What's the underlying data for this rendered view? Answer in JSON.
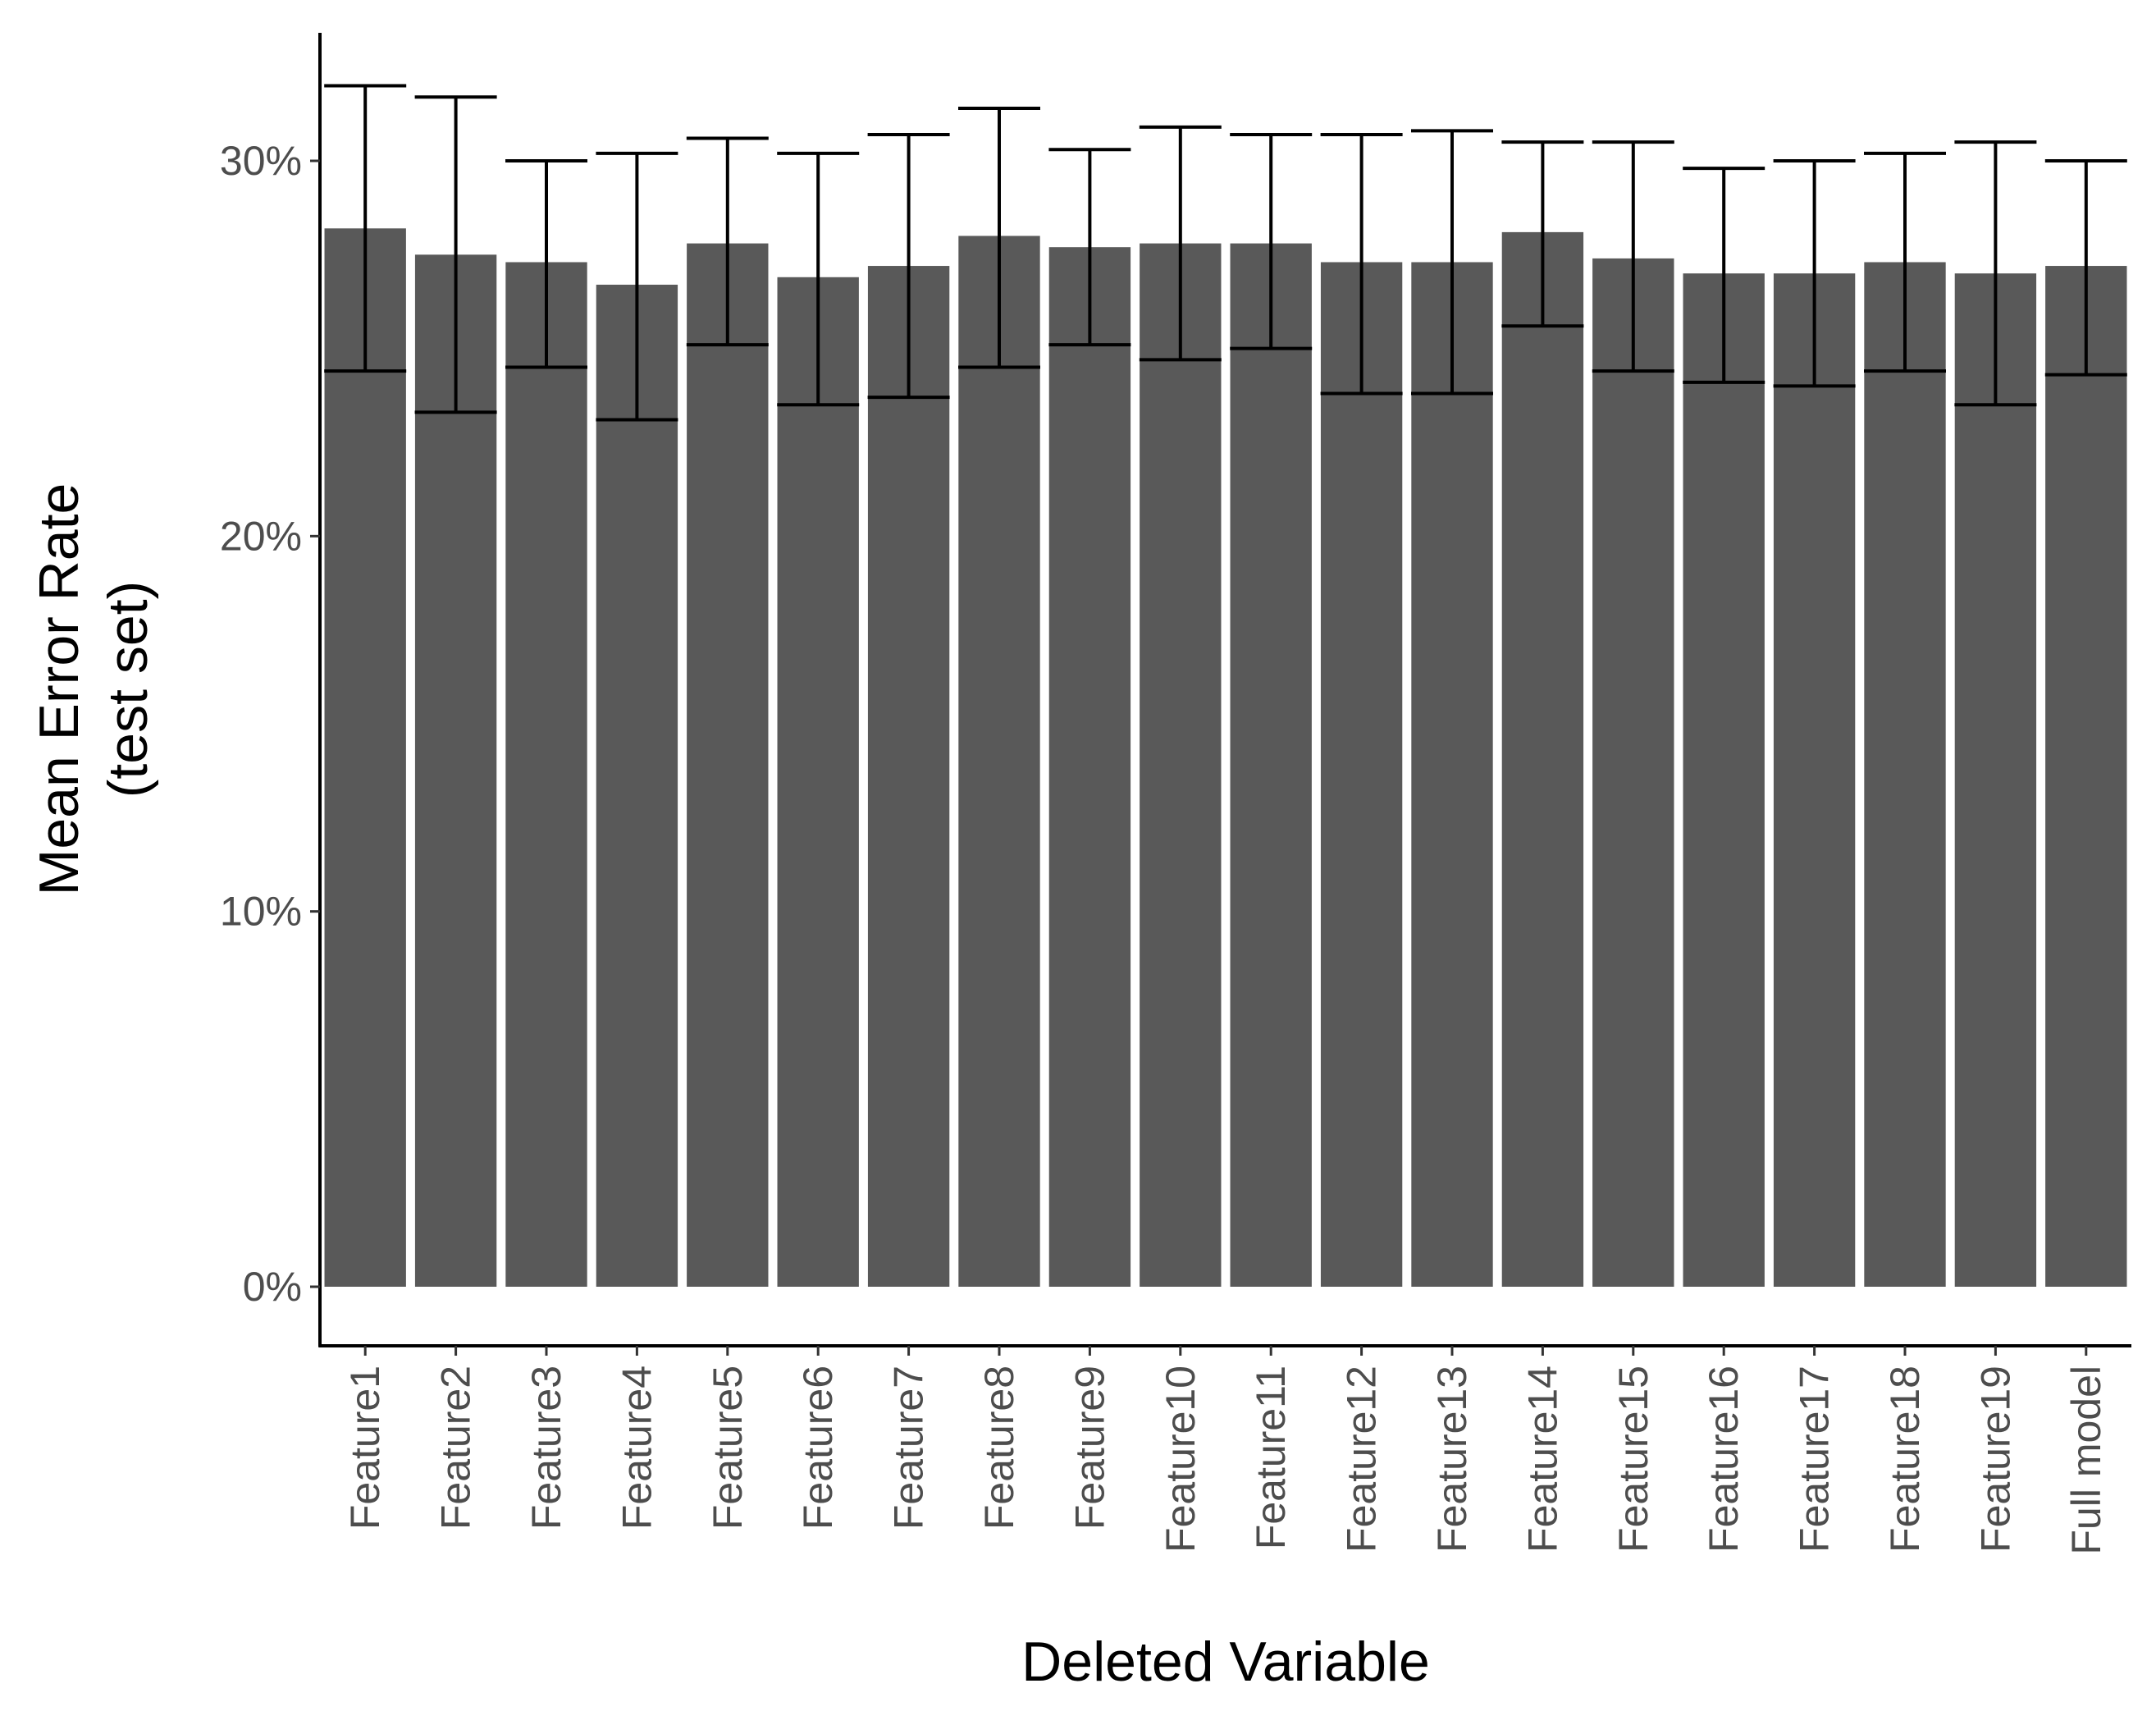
{
  "chart_data": {
    "type": "bar",
    "title": "",
    "xlabel": "Deleted Variable",
    "ylabel_lines": [
      "Mean Error Rate",
      "(test set)"
    ],
    "ylim": [
      0,
      0.33
    ],
    "yticks": [
      0,
      0.1,
      0.2,
      0.3
    ],
    "ytick_labels": [
      "0%",
      "10%",
      "20%",
      "30%"
    ],
    "grid": false,
    "legend": "none",
    "categories": [
      "Feature1",
      "Feature2",
      "Feature3",
      "Feature4",
      "Feature5",
      "Feature6",
      "Feature7",
      "Feature8",
      "Feature9",
      "Feature10",
      "Feature11",
      "Feature12",
      "Feature13",
      "Feature14",
      "Feature15",
      "Feature16",
      "Feature17",
      "Feature18",
      "Feature19",
      "Full model"
    ],
    "values": [
      0.282,
      0.275,
      0.273,
      0.267,
      0.278,
      0.269,
      0.272,
      0.28,
      0.277,
      0.278,
      0.278,
      0.273,
      0.273,
      0.281,
      0.274,
      0.27,
      0.27,
      0.273,
      0.27,
      0.272
    ],
    "error_low": [
      0.244,
      0.233,
      0.245,
      0.231,
      0.251,
      0.235,
      0.237,
      0.245,
      0.251,
      0.247,
      0.25,
      0.238,
      0.238,
      0.256,
      0.244,
      0.241,
      0.24,
      0.244,
      0.235,
      0.243
    ],
    "error_high": [
      0.32,
      0.317,
      0.3,
      0.302,
      0.306,
      0.302,
      0.307,
      0.314,
      0.303,
      0.309,
      0.307,
      0.307,
      0.308,
      0.305,
      0.305,
      0.298,
      0.3,
      0.302,
      0.305,
      0.3
    ],
    "colors": {
      "bar": "#595959",
      "error_bar": "#000000",
      "axis": "#000000"
    }
  }
}
